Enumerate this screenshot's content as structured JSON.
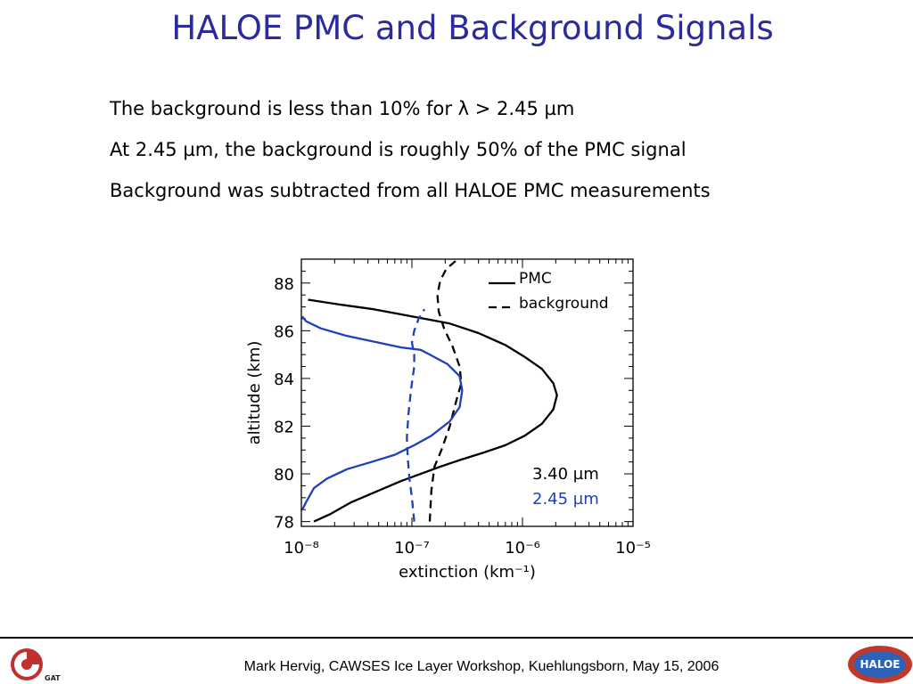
{
  "title": "HALOE PMC and Background Signals",
  "bullets": [
    "The background is less than 10% for λ > 2.45 µm",
    "At 2.45 µm,  the background is roughly 50% of the PMC signal",
    "Background was subtracted from all HALOE PMC measurements"
  ],
  "footer": "Mark Hervig, CAWSES Ice Layer Workshop, Kuehlungsborn, May 15, 2006",
  "logos": {
    "left_text": "GATS",
    "right_text": "HALOE"
  },
  "colors": {
    "title": "#2b2b9e",
    "blue_series": "#1f3fbf",
    "black_series": "#000000"
  },
  "chart_data": {
    "type": "line",
    "xscale": "log",
    "xlim": [
      1e-08,
      1e-05
    ],
    "ylim": [
      77.8,
      89
    ],
    "xlabel": "extinction (km⁻¹)",
    "ylabel": "altitude (km)",
    "xticks": [
      {
        "value": 1e-08,
        "label": "10⁻⁸"
      },
      {
        "value": 1e-07,
        "label": "10⁻⁷"
      },
      {
        "value": 1e-06,
        "label": "10⁻⁶"
      },
      {
        "value": 1e-05,
        "label": "10⁻⁵"
      }
    ],
    "yticks": [
      78,
      80,
      82,
      84,
      86,
      88
    ],
    "legend": {
      "placement": "top-right",
      "entries": [
        {
          "label": "PMC",
          "style": "solid"
        },
        {
          "label": "background",
          "style": "dashed"
        }
      ]
    },
    "annotations": [
      {
        "text": "3.40 µm",
        "color": "#000000"
      },
      {
        "text": "2.45 µm",
        "color": "#1f3fbf"
      }
    ],
    "series": [
      {
        "wavelength": "3.40 µm",
        "kind": "PMC",
        "color": "#000000",
        "dash": "solid",
        "x": [
          1.3e-08,
          1.8e-08,
          2.8e-08,
          5e-08,
          8e-08,
          1.2e-07,
          1.8e-07,
          2.8e-07,
          4.5e-07,
          7e-07,
          1.05e-06,
          1.5e-06,
          1.9e-06,
          2.05e-06,
          1.9e-06,
          1.5e-06,
          1.05e-06,
          7e-07,
          4e-07,
          2.2e-07,
          1e-07,
          4.5e-08,
          2.2e-08,
          1.15e-08
        ],
        "y": [
          78.0,
          78.3,
          78.8,
          79.3,
          79.7,
          80.0,
          80.3,
          80.6,
          80.9,
          81.2,
          81.6,
          82.1,
          82.7,
          83.3,
          83.8,
          84.4,
          84.9,
          85.4,
          85.9,
          86.3,
          86.6,
          86.9,
          87.1,
          87.3
        ]
      },
      {
        "wavelength": "3.40 µm",
        "kind": "background",
        "color": "#000000",
        "dash": "dashed",
        "x": [
          1.45e-07,
          1.5e-07,
          1.6e-07,
          1.85e-07,
          2.2e-07,
          2.5e-07,
          2.8e-07,
          2.7e-07,
          2.35e-07,
          1.95e-07,
          1.75e-07,
          1.7e-07,
          1.8e-07,
          2.05e-07,
          2.6e-07
        ],
        "y": [
          78.0,
          79.3,
          80.3,
          81.0,
          82.0,
          83.0,
          83.8,
          84.5,
          85.3,
          86.1,
          86.8,
          87.5,
          88.1,
          88.6,
          89.0
        ]
      },
      {
        "wavelength": "2.45 µm",
        "kind": "PMC",
        "color": "#1f3fbf",
        "dash": "solid",
        "x": [
          1.02e-08,
          1.1e-08,
          1.3e-08,
          1.7e-08,
          2.6e-08,
          4.3e-08,
          7e-08,
          1.05e-07,
          1.5e-07,
          2.2e-07,
          2.7e-07,
          2.85e-07,
          2.7e-07,
          2.1e-07,
          1.45e-07,
          1.2e-07,
          8e-08,
          5e-08,
          2.5e-08,
          1.5e-08,
          1.1e-08,
          1.02e-08
        ],
        "y": [
          78.5,
          78.8,
          79.4,
          79.8,
          80.2,
          80.5,
          80.8,
          81.2,
          81.6,
          82.2,
          82.8,
          83.5,
          84.1,
          84.6,
          85.0,
          85.2,
          85.3,
          85.5,
          85.8,
          86.1,
          86.4,
          86.6
        ]
      },
      {
        "wavelength": "2.45 µm",
        "kind": "background",
        "color": "#1f3fbf",
        "dash": "dashed",
        "x": [
          1.05e-07,
          1e-07,
          9.5e-08,
          9.2e-08,
          9e-08,
          9.3e-08,
          9.8e-08,
          1.05e-07,
          1.05e-07,
          1e-07,
          1.05e-07,
          1.15e-07,
          1.3e-07
        ],
        "y": [
          78.0,
          79.0,
          79.8,
          80.6,
          81.5,
          82.5,
          83.5,
          84.5,
          85.0,
          85.5,
          86.0,
          86.5,
          86.9
        ]
      }
    ]
  }
}
